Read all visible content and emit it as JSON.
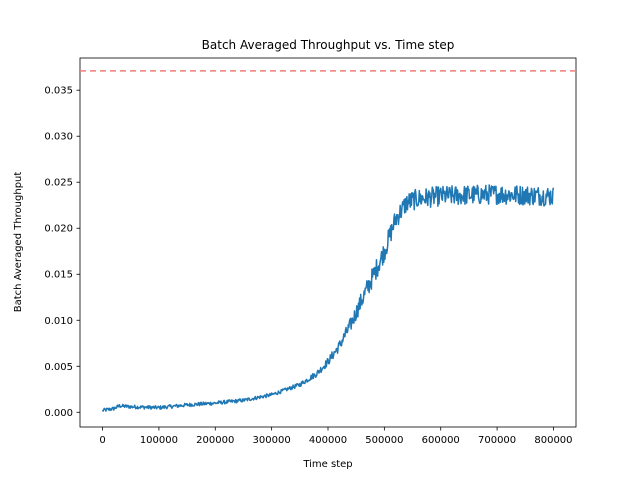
{
  "chart_data": {
    "type": "line",
    "title": "Batch Averaged Throughput vs. Time step",
    "xlabel": "Time step",
    "ylabel": "Batch Averaged Throughput",
    "xlim": [
      -40000,
      840000
    ],
    "ylim": [
      -0.0016,
      0.0385
    ],
    "xticks": [
      0,
      100000,
      200000,
      300000,
      400000,
      500000,
      600000,
      700000,
      800000
    ],
    "xtick_labels": [
      "0",
      "100000",
      "200000",
      "300000",
      "400000",
      "500000",
      "600000",
      "700000",
      "800000"
    ],
    "yticks": [
      0.0,
      0.005,
      0.01,
      0.015,
      0.02,
      0.025,
      0.03,
      0.035
    ],
    "ytick_labels": [
      "0.000",
      "0.005",
      "0.010",
      "0.015",
      "0.020",
      "0.025",
      "0.030",
      "0.035"
    ],
    "grid": false,
    "series": [
      {
        "color": "#1f77b4",
        "style": "solid",
        "noisy": true,
        "x": [
          0,
          20000,
          30000,
          50000,
          100000,
          150000,
          200000,
          250000,
          300000,
          350000,
          380000,
          400000,
          420000,
          440000,
          460000,
          480000,
          500000,
          520000,
          540000,
          560000,
          600000,
          650000,
          700000,
          750000,
          800000
        ],
        "y": [
          0.0002,
          0.0004,
          0.0007,
          0.0006,
          0.0005,
          0.0008,
          0.001,
          0.0013,
          0.0019,
          0.003,
          0.0042,
          0.0055,
          0.0072,
          0.0095,
          0.0122,
          0.0148,
          0.0175,
          0.021,
          0.0228,
          0.0232,
          0.0235,
          0.0236,
          0.0237,
          0.0236,
          0.0235
        ]
      }
    ],
    "reference_line": {
      "y": 0.0371,
      "color": "#f07e78",
      "style": "dashed"
    }
  }
}
